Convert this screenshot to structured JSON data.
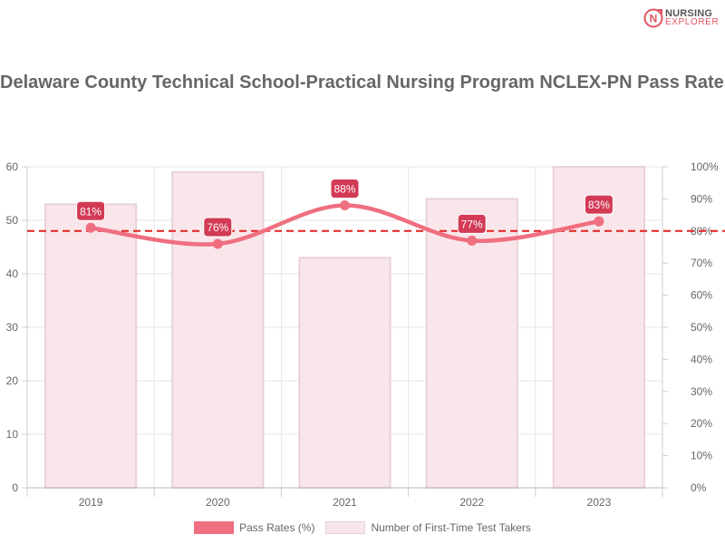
{
  "logo": {
    "line1": "NURSING",
    "line2": "EXPLORER",
    "mark_letter": "N"
  },
  "colors": {
    "line": "#ef6f80",
    "bar_fill": "#f9e6ea",
    "bar_stroke": "#e8d2d8",
    "label_bg": "#d23a55",
    "reference": "#e02020",
    "grid": "#e6e6e6",
    "axis_text": "#666666"
  },
  "chart_data": {
    "type": "bar",
    "title": "Delaware County Technical School-Practical Nursing Program NCLEX-PN Pass Rates",
    "categories": [
      "2019",
      "2020",
      "2021",
      "2022",
      "2023"
    ],
    "series": [
      {
        "name": "Number of First-Time Test Takers",
        "type": "bar",
        "axis": "left",
        "values": [
          53,
          59,
          43,
          54,
          60
        ]
      },
      {
        "name": "Pass Rates (%)",
        "type": "line",
        "axis": "right",
        "values": [
          81,
          76,
          88,
          77,
          83
        ],
        "value_labels": [
          "81%",
          "76%",
          "88%",
          "77%",
          "83%"
        ]
      }
    ],
    "reference_line": {
      "axis": "right",
      "value": 80,
      "style": "dashed"
    },
    "y_left": {
      "min": 0,
      "max": 60,
      "ticks": [
        "0",
        "10",
        "20",
        "30",
        "40",
        "50",
        "60"
      ]
    },
    "y_right": {
      "min": 0,
      "max": 100,
      "ticks": [
        "0%",
        "10%",
        "20%",
        "30%",
        "40%",
        "50%",
        "60%",
        "70%",
        "80%",
        "90%",
        "100%"
      ]
    },
    "legend": {
      "placement": "bottom-center",
      "entries": [
        "Pass Rates (%)",
        "Number of First-Time Test Takers"
      ]
    },
    "grid": true
  }
}
